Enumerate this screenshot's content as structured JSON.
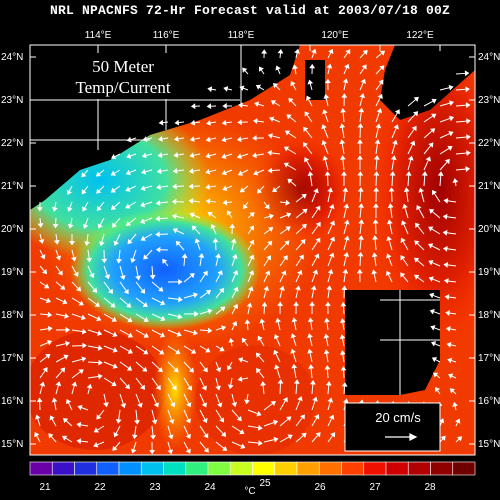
{
  "title": "NRL NPACNFS 72-Hr Forecast valid at 2003/07/18 00Z",
  "panel_label": {
    "line1": "50 Meter",
    "line2": "Temp/Current"
  },
  "reference_vector": {
    "label": "20 cm/s"
  },
  "colorbar": {
    "unit": "°C",
    "ticks": [
      "21",
      "22",
      "23",
      "24",
      "25",
      "26",
      "27",
      "28"
    ],
    "colors": [
      "#6a00a8",
      "#3a10c8",
      "#2030e0",
      "#1060ff",
      "#0090ff",
      "#00c0f0",
      "#00e0c0",
      "#30f080",
      "#80ff40",
      "#c8ff20",
      "#ffff00",
      "#ffd000",
      "#ffa000",
      "#ff7000",
      "#ff4000",
      "#f01000",
      "#d00000",
      "#b00000",
      "#900000",
      "#700000"
    ]
  },
  "axes": {
    "x_ticks": [
      "114°E",
      "116°E",
      "118°E",
      "120°E",
      "122°E"
    ],
    "y_ticks": [
      "24°N",
      "23°N",
      "22°N",
      "21°N",
      "20°N",
      "19°N",
      "18°N",
      "17°N",
      "16°N",
      "15°N"
    ]
  },
  "map_data": {
    "field": "temperature_50m",
    "regions_celsius": [
      {
        "name": "central cold eddy",
        "value": 22.7
      },
      {
        "name": "northwest shelf",
        "value": 23.3
      },
      {
        "name": "eastern warm pool",
        "value": 27.2
      },
      {
        "name": "southern warm eddy",
        "value": 26.7
      }
    ]
  }
}
